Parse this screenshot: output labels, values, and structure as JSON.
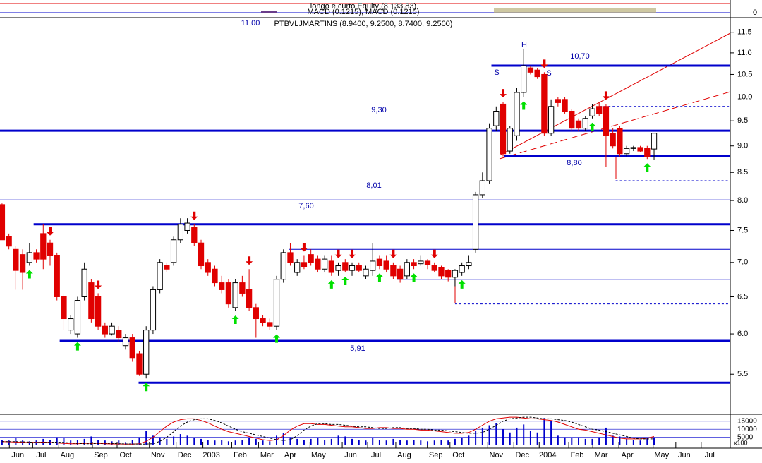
{
  "chart_data": {
    "type": "candlestick",
    "title": "PTBVLJMARTINS (8.9400, 9.2500, 8.7400, 9.2500)",
    "log_scale": true,
    "up_color": "#ffffff",
    "down_color": "#e00000",
    "open": [
      7.93,
      7.4,
      7.2,
      7.12,
      7.0,
      7.15,
      7.45,
      7.3,
      7.1,
      6.5,
      6.05,
      6.0,
      6.5,
      6.7,
      6.5,
      6.1,
      6.0,
      6.05,
      5.85,
      5.95,
      5.75,
      5.5,
      6.05,
      6.6,
      6.95,
      7.0,
      7.35,
      7.5,
      7.55,
      7.3,
      7.0,
      6.9,
      6.7,
      6.7,
      6.35,
      6.7,
      6.6,
      6.35,
      6.2,
      6.15,
      6.1,
      6.75,
      7.15,
      6.85,
      7.0,
      7.12,
      7.05,
      6.9,
      7.02,
      6.88,
      7.0,
      6.88,
      6.95,
      6.8,
      6.88,
      7.05,
      7.02,
      6.95,
      6.9,
      6.8,
      7.0,
      6.98,
      7.02,
      6.95,
      6.92,
      6.88,
      6.78,
      6.85,
      6.95,
      7.2,
      8.1,
      8.35,
      9.4,
      9.85,
      8.9,
      9.2,
      10.1,
      10.65,
      10.6,
      10.5,
      9.25,
      9.95,
      9.95,
      9.7,
      9.5,
      9.35,
      9.6,
      9.8,
      9.8,
      9.25,
      9.35,
      8.85,
      8.95,
      8.97,
      8.95,
      8.94
    ],
    "high": [
      7.95,
      7.45,
      7.25,
      7.2,
      7.3,
      7.2,
      7.6,
      7.35,
      7.15,
      6.55,
      6.25,
      6.5,
      7.0,
      6.75,
      6.55,
      6.15,
      6.15,
      6.1,
      6.0,
      6.0,
      5.78,
      6.1,
      6.65,
      7.05,
      7.0,
      7.4,
      7.7,
      7.7,
      7.6,
      7.35,
      7.05,
      6.95,
      6.8,
      6.75,
      6.75,
      6.8,
      6.9,
      6.4,
      6.25,
      6.2,
      6.8,
      7.2,
      7.3,
      7.05,
      7.1,
      7.2,
      7.1,
      7.1,
      7.1,
      7.0,
      7.05,
      7.0,
      7.0,
      6.95,
      7.3,
      7.1,
      7.1,
      7.0,
      6.95,
      7.05,
      7.05,
      7.1,
      7.05,
      7.0,
      6.95,
      6.9,
      6.9,
      7.0,
      7.1,
      8.15,
      8.5,
      9.45,
      9.8,
      9.9,
      9.4,
      10.2,
      11.1,
      10.7,
      10.65,
      10.55,
      9.95,
      10.0,
      10.0,
      9.75,
      9.55,
      9.6,
      9.85,
      9.9,
      9.85,
      9.35,
      9.4,
      9.0,
      9.0,
      9.0,
      9.0,
      9.25
    ],
    "low": [
      7.35,
      7.2,
      6.6,
      6.6,
      6.95,
      7.0,
      6.9,
      6.95,
      6.45,
      6.05,
      6.0,
      5.95,
      6.45,
      6.15,
      6.05,
      5.95,
      5.98,
      5.9,
      5.8,
      5.65,
      5.48,
      5.45,
      6.0,
      6.55,
      6.85,
      6.95,
      7.3,
      7.45,
      7.25,
      6.9,
      6.8,
      6.65,
      6.55,
      6.35,
      6.3,
      6.5,
      6.3,
      5.95,
      6.1,
      6.05,
      6.05,
      6.7,
      6.95,
      6.8,
      6.9,
      6.95,
      6.85,
      6.85,
      6.8,
      6.8,
      6.85,
      6.8,
      6.85,
      6.75,
      6.8,
      6.9,
      6.85,
      6.75,
      6.7,
      6.75,
      6.9,
      6.95,
      6.9,
      6.85,
      6.75,
      6.72,
      6.65,
      6.8,
      6.9,
      7.15,
      8.05,
      8.3,
      9.3,
      8.8,
      8.85,
      9.1,
      10.0,
      10.5,
      10.4,
      9.2,
      9.2,
      9.8,
      9.65,
      9.3,
      9.3,
      9.3,
      9.55,
      9.6,
      8.6,
      8.95,
      8.8,
      8.8,
      8.9,
      8.88,
      8.75,
      8.74
    ],
    "close": [
      7.35,
      7.25,
      6.88,
      6.85,
      7.15,
      7.05,
      7.05,
      7.1,
      6.5,
      6.2,
      6.2,
      6.45,
      6.9,
      6.2,
      6.1,
      6.0,
      6.1,
      5.95,
      5.95,
      5.7,
      5.5,
      6.05,
      6.6,
      7.0,
      6.9,
      7.35,
      7.6,
      7.62,
      7.3,
      6.95,
      6.85,
      6.7,
      6.6,
      6.4,
      6.7,
      6.55,
      6.35,
      6.2,
      6.15,
      6.1,
      6.75,
      7.15,
      7.0,
      7.0,
      6.93,
      7.0,
      6.9,
      7.05,
      6.85,
      6.95,
      6.88,
      6.95,
      6.88,
      6.9,
      7.02,
      6.95,
      6.9,
      6.8,
      6.75,
      7.0,
      6.95,
      7.02,
      6.97,
      6.88,
      6.8,
      6.78,
      6.88,
      6.95,
      7.0,
      8.1,
      8.35,
      9.35,
      9.7,
      8.85,
      9.35,
      10.1,
      10.7,
      10.55,
      10.45,
      9.25,
      9.8,
      9.88,
      9.7,
      9.35,
      9.35,
      9.55,
      9.75,
      9.65,
      9.2,
      9.0,
      8.85,
      8.95,
      8.97,
      8.9,
      8.8,
      9.25
    ],
    "xlim": [
      -0.3,
      106.1
    ],
    "xticks": [
      {
        "value": 2.3,
        "label": "Jun"
      },
      {
        "value": 5.7,
        "label": "Jul"
      },
      {
        "value": 9.5,
        "label": "Aug"
      },
      {
        "value": 14.4,
        "label": "Sep"
      },
      {
        "value": 18.0,
        "label": "Oct"
      },
      {
        "value": 22.7,
        "label": "Nov"
      },
      {
        "value": 26.6,
        "label": "Dec"
      },
      {
        "value": 30.5,
        "label": "2003"
      },
      {
        "value": 34.7,
        "label": "Feb"
      },
      {
        "value": 38.6,
        "label": "Mar"
      },
      {
        "value": 42.0,
        "label": "Apr"
      },
      {
        "value": 46.1,
        "label": "May"
      },
      {
        "value": 50.8,
        "label": "Jun"
      },
      {
        "value": 54.5,
        "label": "Jul"
      },
      {
        "value": 58.6,
        "label": "Aug"
      },
      {
        "value": 63.2,
        "label": "Sep"
      },
      {
        "value": 66.5,
        "label": "Oct"
      },
      {
        "value": 72.0,
        "label": "Nov"
      },
      {
        "value": 75.8,
        "label": "Dec"
      },
      {
        "value": 79.5,
        "label": "2004"
      },
      {
        "value": 83.8,
        "label": "Feb"
      },
      {
        "value": 87.3,
        "label": "Mar"
      },
      {
        "value": 91.1,
        "label": "Apr"
      },
      {
        "value": 96.1,
        "label": "May"
      },
      {
        "value": 99.4,
        "label": "Jun"
      },
      {
        "value": 103.1,
        "label": "Jul"
      }
    ],
    "ylim": [
      5.06,
      11.85
    ],
    "yticks": [
      5.5,
      {
        "value": 6,
        "label": "6.0"
      },
      6.5,
      {
        "value": 7,
        "label": "7.0"
      },
      7.5,
      {
        "value": 8,
        "label": "8.0"
      },
      8.5,
      {
        "value": 9,
        "label": "9.0"
      },
      9.5,
      {
        "value": 10,
        "label": "10.0"
      },
      10.5,
      {
        "value": 11,
        "label": "11.0"
      },
      11.5
    ],
    "levels": [
      {
        "value": 10.7,
        "from": 71.3,
        "style": "thick"
      },
      {
        "value": 9.3,
        "from": -0.3,
        "style": "thick"
      },
      {
        "value": 8.8,
        "from": 73.1,
        "style": "thick"
      },
      {
        "value": 7.6,
        "from": 4.6,
        "style": "thick"
      },
      {
        "value": 5.91,
        "from": 8.4,
        "style": "thick"
      },
      {
        "value": 5.4,
        "from": 19.9,
        "style": "thick"
      },
      {
        "value": 8.01,
        "from": -0.3,
        "style": "thin"
      },
      {
        "value": 7.2,
        "from": 41.8,
        "style": "thin"
      },
      {
        "value": 6.75,
        "from": 57.5,
        "style": "thin"
      },
      {
        "value": 9.8,
        "from": 87.1,
        "style": "dashed"
      },
      {
        "value": 8.35,
        "from": 89.4,
        "style": "dashed"
      },
      {
        "value": 6.4,
        "from": 66,
        "style": "dashed"
      }
    ],
    "level_color": "#0000cc",
    "annotations": [
      "11,00",
      "10,70",
      "9,30",
      "8,80",
      "8,01",
      "7,60",
      "5,91",
      "S",
      "H",
      "S"
    ],
    "buy_signals": [
      4,
      11,
      21,
      34,
      40,
      48,
      50,
      55,
      60,
      67,
      76,
      86,
      94
    ],
    "sell_signals": [
      7,
      14,
      28,
      36,
      44,
      49,
      51,
      57,
      63,
      73,
      79,
      88
    ],
    "buy_color": "#00e000",
    "sell_color": "#e00000",
    "volume": {
      "color": "#0000cc",
      "values": [
        3500,
        3000,
        4500,
        3000,
        2500,
        3000,
        4000,
        3500,
        5000,
        4500,
        3000,
        3500,
        4000,
        5500,
        3500,
        3000,
        2500,
        3000,
        2000,
        3500,
        5000,
        9000,
        6000,
        5000,
        4000,
        5500,
        7000,
        6000,
        4500,
        4000,
        3500,
        3000,
        3500,
        2500,
        3000,
        3500,
        4500,
        4000,
        3000,
        2500,
        6000,
        7500,
        5000,
        4000,
        3500,
        4000,
        4500,
        3500,
        4000,
        6000,
        5500,
        4000,
        3500,
        3000,
        4500,
        3500,
        3000,
        4000,
        3500,
        3000,
        3500,
        3000,
        2500,
        3000,
        3500,
        3000,
        4000,
        4500,
        6000,
        9000,
        11000,
        12500,
        14000,
        10000,
        8000,
        11000,
        13000,
        9000,
        8000,
        17000,
        15000,
        6000,
        5000,
        4500,
        5000,
        4000,
        4000,
        5000,
        11000,
        6000,
        5500,
        4000,
        3500,
        3000,
        4500,
        5000
      ],
      "ylim": [
        0,
        18000
      ],
      "yticks": [
        5000,
        10000,
        15000
      ],
      "unit_label": "x100",
      "series": [
        {
          "color": "#e00000",
          "dash": false,
          "values": [
            2300,
            2200,
            2000,
            1800,
            1800,
            1900,
            2000,
            1800,
            1500,
            1200,
            1000,
            1000,
            1200,
            1300,
            1200,
            1000,
            900,
            900,
            800,
            800,
            1000,
            2500,
            5000,
            8500,
            12000,
            14500,
            16000,
            16500,
            16500,
            15500,
            14000,
            12000,
            10000,
            8500,
            7500,
            6500,
            5500,
            4500,
            3500,
            3000,
            3500,
            6000,
            9500,
            12000,
            13500,
            13500,
            13000,
            13000,
            12500,
            12000,
            11500,
            11500,
            11000,
            10500,
            10500,
            11000,
            11000,
            10500,
            10500,
            10000,
            10000,
            9500,
            9500,
            9000,
            8500,
            8000,
            7500,
            7500,
            8000,
            10000,
            12500,
            15000,
            16500,
            17000,
            17500,
            17500,
            17000,
            16500,
            16500,
            16000,
            15500,
            14500,
            13000,
            11500,
            10000,
            9500,
            8500,
            7500,
            6500,
            5500,
            4500,
            4000,
            4000,
            4000,
            4500,
            5500
          ]
        },
        {
          "color": "#000000",
          "dash": true,
          "values": [
            2300,
            2300,
            2300,
            2200,
            2000,
            1800,
            1800,
            1900,
            2000,
            1800,
            1500,
            1200,
            1000,
            1000,
            1200,
            1300,
            1200,
            1000,
            900,
            900,
            800,
            800,
            1000,
            2500,
            5000,
            8500,
            12000,
            14500,
            16000,
            16500,
            16500,
            15500,
            14000,
            12000,
            10000,
            8500,
            7500,
            6500,
            5500,
            4500,
            3500,
            3000,
            3500,
            6000,
            9500,
            12000,
            13500,
            13500,
            13000,
            13000,
            12500,
            12000,
            11500,
            11500,
            11000,
            10500,
            10500,
            11000,
            11000,
            10500,
            10500,
            10000,
            10000,
            9500,
            9500,
            9000,
            8500,
            8000,
            7500,
            7500,
            8000,
            10000,
            12500,
            15000,
            16500,
            17000,
            17500,
            17500,
            17000,
            16500,
            16500,
            16000,
            15500,
            14500,
            13000,
            11500,
            10000,
            9500,
            8500,
            7500,
            6500,
            5500,
            4500,
            4000,
            4000,
            4000
          ]
        }
      ]
    },
    "top_panel": {
      "title": "longo e curto Equity (8.133,83)",
      "subtitle": "MACD (0.1215), MACD (0.1215)",
      "yticks": [
        0
      ]
    }
  }
}
